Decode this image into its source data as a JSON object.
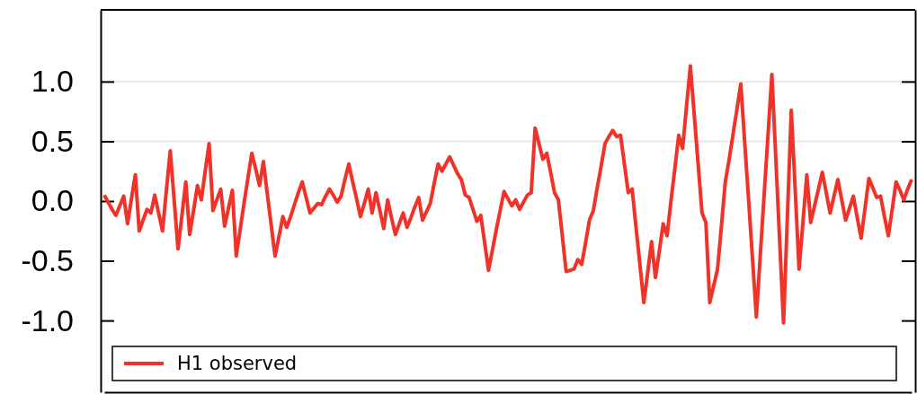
{
  "chart_data": {
    "type": "line",
    "tick_labels": "y",
    "legend": "bottom",
    "categories": [
      null,
      null,
      null,
      null,
      null,
      null,
      null,
      null,
      null,
      null,
      null,
      null,
      null,
      null,
      null,
      null,
      null,
      null,
      null,
      null,
      null,
      null,
      null,
      null,
      null,
      null,
      null,
      null,
      null,
      null,
      null,
      null,
      null,
      null,
      null,
      null,
      null,
      null,
      null,
      null,
      null,
      null,
      null,
      null,
      null,
      null,
      null,
      null,
      null,
      null,
      null,
      null,
      null,
      null,
      null,
      null,
      null,
      null,
      null,
      null,
      null,
      null,
      null,
      null,
      null,
      null,
      null,
      null,
      null,
      null,
      null,
      null,
      null,
      null,
      null,
      null,
      null,
      null,
      null,
      null,
      null,
      null,
      null,
      null,
      null,
      null,
      null,
      null,
      null,
      null,
      null,
      null,
      null,
      null,
      null,
      null,
      null,
      null,
      null,
      null,
      null,
      null,
      null,
      null,
      null,
      null,
      null,
      null,
      null,
      null,
      null,
      null,
      null,
      null,
      null,
      null,
      null,
      null,
      null,
      null,
      null,
      null,
      null,
      null,
      null,
      null,
      null,
      null,
      null,
      null,
      null,
      null,
      null,
      null,
      null,
      null,
      null,
      null,
      null,
      null,
      null,
      null,
      null,
      null,
      null,
      null,
      null,
      null,
      null,
      null,
      null,
      null,
      null,
      null,
      null,
      null,
      null,
      null,
      null,
      null,
      null,
      null,
      null,
      null,
      null,
      null,
      null,
      null,
      null,
      null,
      null,
      null,
      null,
      null,
      null,
      null,
      null,
      null,
      null,
      null,
      null,
      null,
      null,
      null,
      null,
      null,
      null,
      null,
      null,
      null,
      null,
      null,
      null,
      null,
      null,
      null,
      null,
      null,
      null,
      null,
      null,
      null,
      null,
      null,
      null,
      null,
      null,
      null,
      null
    ],
    "ylim": [
      -1.6,
      1.6
    ],
    "yticks": [
      {
        "value": -1,
        "label": "-1.0"
      },
      {
        "value": -0.5,
        "label": "-0.5"
      },
      {
        "value": 0,
        "label": "0.0"
      },
      {
        "value": 0.5,
        "label": "0.5"
      },
      {
        "value": 1,
        "label": "1.0"
      }
    ],
    "ref_lines": [
      {
        "axis": "y",
        "value": 0.5,
        "color": "#e3e3e3"
      },
      {
        "axis": "y",
        "value": 1,
        "color": "#e3e3e3"
      }
    ],
    "series": [
      {
        "name": "H1 observed",
        "color": "#f03228",
        "values": [
          0.05,
          -0.01,
          -0.07,
          -0.12,
          -0.04,
          0.04,
          -0.19,
          0.02,
          0.22,
          -0.25,
          -0.16,
          -0.07,
          -0.1,
          0.05,
          -0.1,
          -0.25,
          0.09,
          0.42,
          0.01,
          -0.4,
          -0.12,
          0.16,
          -0.28,
          -0.08,
          0.13,
          0.01,
          0.25,
          0.48,
          -0.08,
          0.01,
          0.1,
          -0.21,
          -0.06,
          0.09,
          -0.46,
          -0.24,
          -0.02,
          0.19,
          0.4,
          0.27,
          0.13,
          0.33,
          0.06,
          -0.2,
          -0.46,
          -0.3,
          -0.13,
          -0.22,
          -0.13,
          -0.03,
          0.07,
          0.16,
          0.03,
          -0.1,
          -0.06,
          -0.02,
          -0.03,
          0.04,
          0.1,
          0.05,
          -0.01,
          0.04,
          0.18,
          0.31,
          0.16,
          0.02,
          -0.13,
          -0.02,
          0.1,
          -0.1,
          0.07,
          -0.08,
          -0.23,
          0.01,
          -0.14,
          -0.28,
          -0.19,
          -0.1,
          -0.22,
          -0.14,
          -0.05,
          0.03,
          -0.16,
          -0.09,
          -0.02,
          0.15,
          0.31,
          0.25,
          0.31,
          0.37,
          0.3,
          0.23,
          0.18,
          0.05,
          0.03,
          -0.07,
          -0.17,
          -0.12,
          -0.35,
          -0.58,
          -0.41,
          -0.24,
          -0.08,
          0.08,
          0.02,
          -0.04,
          0.01,
          -0.07,
          -0.01,
          0.05,
          0.07,
          0.61,
          0.48,
          0.35,
          0.4,
          0.24,
          0.07,
          0.01,
          -0.29,
          -0.59,
          -0.58,
          -0.57,
          -0.49,
          -0.53,
          -0.35,
          -0.16,
          -0.08,
          0.11,
          0.29,
          0.48,
          0.54,
          0.59,
          0.54,
          0.55,
          0.31,
          0.07,
          0.1,
          -0.22,
          -0.53,
          -0.85,
          -0.6,
          -0.34,
          -0.64,
          -0.42,
          -0.19,
          -0.29,
          0.0,
          0.27,
          0.55,
          0.44,
          0.79,
          1.13,
          0.72,
          0.31,
          -0.1,
          -0.18,
          -0.85,
          -0.71,
          -0.57,
          -0.21,
          0.16,
          0.35,
          0.56,
          0.77,
          0.98,
          0.49,
          0.01,
          -0.48,
          -0.97,
          -0.46,
          0.05,
          0.55,
          1.06,
          0.37,
          -0.33,
          -1.02,
          -0.13,
          0.76,
          0.1,
          -0.57,
          -0.18,
          0.22,
          -0.18,
          -0.04,
          0.1,
          0.24,
          0.07,
          -0.1,
          0.04,
          0.18,
          0.01,
          -0.16,
          -0.06,
          0.04,
          -0.14,
          -0.31,
          -0.06,
          0.19,
          0.11,
          0.03,
          0.04,
          -0.13,
          -0.29,
          -0.07,
          0.16,
          0.09,
          0.01,
          0.1,
          0.18
        ]
      }
    ]
  }
}
